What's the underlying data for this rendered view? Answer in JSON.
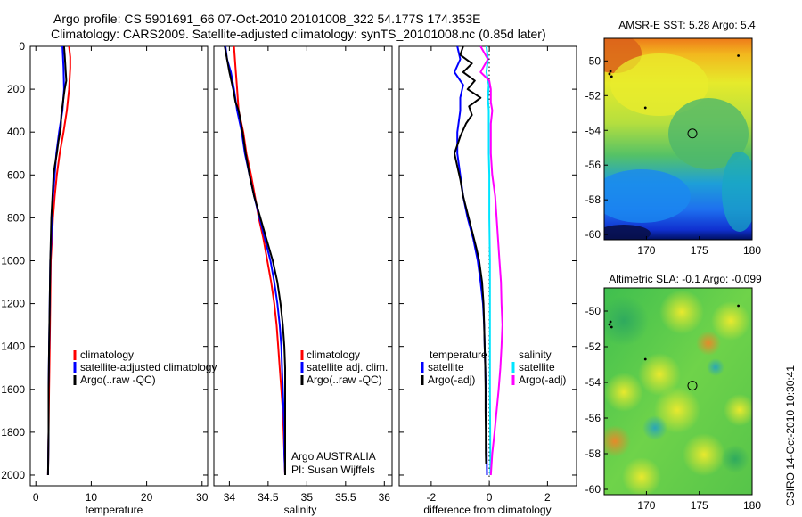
{
  "title": {
    "line1": "Argo profile: CS 5901691_66 07-Oct-2010 20101008_322 54.177S 174.353E",
    "line2": "Climatology: CARS2009. Satellite-adjusted climatology: synTS_20101008.nc (0.85d later)"
  },
  "credit": "CSIRO 14-Oct-2010 10:30:41",
  "colors": {
    "climatology": "#ff0000",
    "satellite": "#0000ff",
    "argo": "#000000",
    "cyan": "#00e5ff",
    "magenta": "#ff00ff"
  },
  "chart_data": [
    {
      "id": "temperature",
      "type": "line",
      "xlabel": "temperature",
      "xlim": [
        -1,
        31
      ],
      "ylim": [
        0,
        2050
      ],
      "xticks": [
        0,
        10,
        20,
        30
      ],
      "yticks": [
        0,
        200,
        400,
        600,
        800,
        1000,
        1200,
        1400,
        1600,
        1800,
        2000
      ],
      "legend": [
        "climatology",
        "satellite-adjusted climatology",
        "Argo(..raw -QC)"
      ],
      "series": [
        {
          "name": "climatology",
          "color": "#ff0000",
          "points": [
            [
              6.0,
              0
            ],
            [
              6.2,
              50
            ],
            [
              6.2,
              100
            ],
            [
              6.0,
              200
            ],
            [
              5.6,
              300
            ],
            [
              5.0,
              400
            ],
            [
              4.3,
              500
            ],
            [
              3.8,
              600
            ],
            [
              3.4,
              700
            ],
            [
              3.1,
              800
            ],
            [
              2.9,
              900
            ],
            [
              2.7,
              1000
            ],
            [
              2.6,
              1200
            ],
            [
              2.5,
              1400
            ],
            [
              2.4,
              1600
            ],
            [
              2.3,
              1800
            ],
            [
              2.2,
              2000
            ]
          ]
        },
        {
          "name": "satellite-adjusted climatology",
          "color": "#0000ff",
          "points": [
            [
              4.8,
              0
            ],
            [
              4.9,
              50
            ],
            [
              5.0,
              100
            ],
            [
              5.1,
              200
            ],
            [
              4.8,
              300
            ],
            [
              4.2,
              400
            ],
            [
              3.7,
              500
            ],
            [
              3.4,
              600
            ],
            [
              3.1,
              700
            ],
            [
              2.9,
              800
            ],
            [
              2.8,
              900
            ],
            [
              2.6,
              1000
            ],
            [
              2.5,
              1200
            ],
            [
              2.4,
              1400
            ],
            [
              2.3,
              1600
            ],
            [
              2.3,
              1800
            ],
            [
              2.2,
              2000
            ]
          ]
        },
        {
          "name": "Argo(..raw -QC)",
          "color": "#000000",
          "points": [
            [
              5.1,
              0
            ],
            [
              5.2,
              40
            ],
            [
              5.3,
              80
            ],
            [
              5.4,
              120
            ],
            [
              5.5,
              160
            ],
            [
              5.2,
              200
            ],
            [
              5.0,
              240
            ],
            [
              4.8,
              280
            ],
            [
              4.6,
              320
            ],
            [
              4.5,
              380
            ],
            [
              4.1,
              440
            ],
            [
              3.8,
              500
            ],
            [
              3.4,
              560
            ],
            [
              3.2,
              600
            ],
            [
              3.0,
              700
            ],
            [
              2.8,
              800
            ],
            [
              2.7,
              900
            ],
            [
              2.6,
              1000
            ],
            [
              2.5,
              1200
            ],
            [
              2.4,
              1400
            ],
            [
              2.3,
              1600
            ],
            [
              2.3,
              1800
            ],
            [
              2.2,
              2000
            ]
          ]
        }
      ]
    },
    {
      "id": "salinity",
      "type": "line",
      "xlabel": "salinity",
      "xlim": [
        33.8,
        36.1
      ],
      "ylim": [
        0,
        2050
      ],
      "xticks": [
        34,
        34.5,
        35,
        35.5,
        36
      ],
      "legend": [
        "climatology",
        "satellite adj. clim.",
        "Argo(..raw -QC)"
      ],
      "annotation": [
        "Argo AUSTRALIA",
        "PI: Susan Wijffels"
      ],
      "series": [
        {
          "name": "climatology",
          "color": "#ff0000",
          "points": [
            [
              34.06,
              0
            ],
            [
              34.08,
              100
            ],
            [
              34.1,
              200
            ],
            [
              34.12,
              300
            ],
            [
              34.18,
              400
            ],
            [
              34.22,
              500
            ],
            [
              34.28,
              600
            ],
            [
              34.33,
              700
            ],
            [
              34.38,
              800
            ],
            [
              34.44,
              900
            ],
            [
              34.49,
              1000
            ],
            [
              34.54,
              1100
            ],
            [
              34.58,
              1200
            ],
            [
              34.61,
              1300
            ],
            [
              34.63,
              1400
            ],
            [
              34.65,
              1500
            ],
            [
              34.67,
              1600
            ],
            [
              34.69,
              1700
            ],
            [
              34.7,
              1800
            ],
            [
              34.71,
              1900
            ],
            [
              34.72,
              2000
            ]
          ]
        },
        {
          "name": "satellite adj. clim.",
          "color": "#0000ff",
          "points": [
            [
              33.95,
              0
            ],
            [
              33.97,
              60
            ],
            [
              34.02,
              120
            ],
            [
              34.06,
              200
            ],
            [
              34.1,
              300
            ],
            [
              34.16,
              400
            ],
            [
              34.2,
              500
            ],
            [
              34.26,
              600
            ],
            [
              34.32,
              700
            ],
            [
              34.39,
              800
            ],
            [
              34.46,
              900
            ],
            [
              34.53,
              1000
            ],
            [
              34.58,
              1100
            ],
            [
              34.62,
              1200
            ],
            [
              34.65,
              1300
            ],
            [
              34.67,
              1400
            ],
            [
              34.68,
              1500
            ],
            [
              34.69,
              1600
            ],
            [
              34.7,
              1700
            ],
            [
              34.71,
              1800
            ],
            [
              34.71,
              1900
            ],
            [
              34.72,
              2000
            ]
          ]
        },
        {
          "name": "Argo(..raw -QC)",
          "color": "#000000",
          "points": [
            [
              33.94,
              0
            ],
            [
              33.97,
              60
            ],
            [
              34.0,
              120
            ],
            [
              34.05,
              200
            ],
            [
              34.08,
              260
            ],
            [
              34.12,
              300
            ],
            [
              34.17,
              400
            ],
            [
              34.21,
              500
            ],
            [
              34.26,
              600
            ],
            [
              34.32,
              700
            ],
            [
              34.4,
              800
            ],
            [
              34.48,
              900
            ],
            [
              34.56,
              1000
            ],
            [
              34.62,
              1100
            ],
            [
              34.66,
              1200
            ],
            [
              34.69,
              1300
            ],
            [
              34.71,
              1400
            ],
            [
              34.72,
              1500
            ],
            [
              34.72,
              1600
            ],
            [
              34.72,
              1700
            ],
            [
              34.72,
              1800
            ],
            [
              34.72,
              1900
            ],
            [
              34.72,
              2000
            ]
          ]
        }
      ]
    },
    {
      "id": "difference",
      "type": "line",
      "xlabel": "difference from climatology",
      "xlim": [
        -3.1,
        3.0
      ],
      "ylim": [
        0,
        2050
      ],
      "xticks": [
        -2,
        0,
        2
      ],
      "legend_left_header": "temperature",
      "legend_right_header": "salinity",
      "legend": [
        "satellite",
        "Argo(-adj)",
        "satellite",
        "Argo(-adj)"
      ],
      "series": [
        {
          "name": "satellite",
          "color": "#0000ff",
          "points": [
            [
              -1.1,
              0
            ],
            [
              -1.0,
              60
            ],
            [
              -1.2,
              120
            ],
            [
              -0.9,
              180
            ],
            [
              -1.0,
              240
            ],
            [
              -1.0,
              300
            ],
            [
              -1.1,
              400
            ],
            [
              -1.1,
              500
            ],
            [
              -1.0,
              600
            ],
            [
              -0.9,
              700
            ],
            [
              -0.75,
              800
            ],
            [
              -0.55,
              900
            ],
            [
              -0.4,
              1000
            ],
            [
              -0.3,
              1100
            ],
            [
              -0.22,
              1200
            ],
            [
              -0.18,
              1300
            ],
            [
              -0.16,
              1400
            ],
            [
              -0.14,
              1500
            ],
            [
              -0.12,
              1600
            ],
            [
              -0.11,
              1700
            ],
            [
              -0.1,
              1800
            ],
            [
              -0.09,
              1900
            ],
            [
              -0.08,
              2000
            ]
          ]
        },
        {
          "name": "Argo(-adj)",
          "color": "#000000",
          "points": [
            [
              -0.9,
              0
            ],
            [
              -1.0,
              40
            ],
            [
              -0.6,
              80
            ],
            [
              -0.9,
              120
            ],
            [
              -0.5,
              160
            ],
            [
              -0.75,
              200
            ],
            [
              -0.3,
              240
            ],
            [
              -0.7,
              280
            ],
            [
              -0.6,
              320
            ],
            [
              -0.8,
              360
            ],
            [
              -1.0,
              420
            ],
            [
              -1.2,
              500
            ],
            [
              -1.1,
              560
            ],
            [
              -1.0,
              620
            ],
            [
              -0.9,
              700
            ],
            [
              -0.75,
              780
            ],
            [
              -0.6,
              860
            ],
            [
              -0.45,
              940
            ],
            [
              -0.35,
              1000
            ],
            [
              -0.25,
              1100
            ],
            [
              -0.2,
              1200
            ],
            [
              -0.18,
              1300
            ],
            [
              -0.16,
              1400
            ],
            [
              -0.14,
              1500
            ],
            [
              -0.13,
              1600
            ],
            [
              -0.13,
              1700
            ],
            [
              -0.12,
              1800
            ],
            [
              -0.12,
              1900
            ],
            [
              -0.11,
              1950
            ]
          ]
        },
        {
          "name": "satellite (salinity)",
          "color": "#00e5ff",
          "points": [
            [
              -0.1,
              0
            ],
            [
              -0.05,
              60
            ],
            [
              -0.1,
              120
            ],
            [
              -0.02,
              180
            ],
            [
              -0.05,
              240
            ],
            [
              -0.02,
              300
            ],
            [
              -0.02,
              400
            ],
            [
              -0.02,
              500
            ],
            [
              0.0,
              600
            ],
            [
              0.0,
              800
            ],
            [
              0.02,
              1000
            ],
            [
              0.02,
              1200
            ],
            [
              0.02,
              1400
            ],
            [
              0.02,
              1600
            ],
            [
              0.03,
              1800
            ],
            [
              0.04,
              2000
            ]
          ]
        },
        {
          "name": "Argo(-adj) (salinity)",
          "color": "#ff00ff",
          "points": [
            [
              -0.3,
              0
            ],
            [
              -0.05,
              60
            ],
            [
              -0.3,
              120
            ],
            [
              0.0,
              160
            ],
            [
              0.05,
              200
            ],
            [
              0.05,
              260
            ],
            [
              0.1,
              300
            ],
            [
              0.05,
              360
            ],
            [
              0.05,
              500
            ],
            [
              0.1,
              600
            ],
            [
              0.2,
              700
            ],
            [
              0.25,
              800
            ],
            [
              0.3,
              900
            ],
            [
              0.35,
              1000
            ],
            [
              0.4,
              1100
            ],
            [
              0.42,
              1200
            ],
            [
              0.45,
              1300
            ],
            [
              0.42,
              1400
            ],
            [
              0.38,
              1500
            ],
            [
              0.32,
              1600
            ],
            [
              0.25,
              1700
            ],
            [
              0.18,
              1800
            ],
            [
              0.1,
              1900
            ],
            [
              0.05,
              2000
            ]
          ]
        }
      ]
    },
    {
      "id": "sst_map",
      "type": "heatmap",
      "title": "AMSR-E SST: 5.28 Argo: 5.4",
      "xlim": [
        166,
        180
      ],
      "ylim": [
        -60.3,
        -48.7
      ],
      "xticks": [
        170,
        175,
        180
      ],
      "yticks": [
        -50,
        -52,
        -54,
        -56,
        -58,
        -60
      ],
      "argo_position": [
        174.35,
        -54.18
      ]
    },
    {
      "id": "sla_map",
      "type": "heatmap",
      "title": "Altimetric SLA: -0.1 Argo: -0.099",
      "xlim": [
        166,
        180
      ],
      "ylim": [
        -60.3,
        -48.7
      ],
      "xticks": [
        170,
        175,
        180
      ],
      "yticks": [
        -50,
        -52,
        -54,
        -56,
        -58,
        -60
      ],
      "argo_position": [
        174.35,
        -54.18
      ]
    }
  ]
}
